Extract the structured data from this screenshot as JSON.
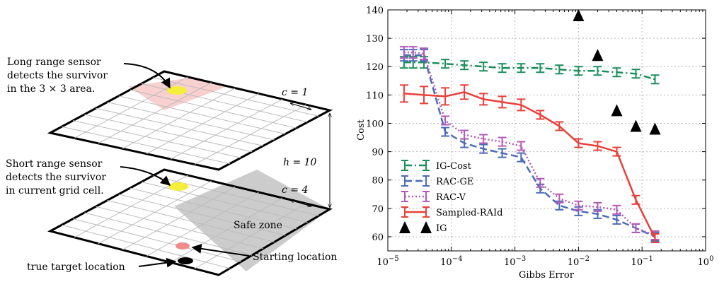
{
  "diagram": {
    "long_range_text": [
      "Long range sensor",
      "detects the survivor",
      "in the 3 × 3 area."
    ],
    "short_range_text": [
      "Short range sensor",
      "detects the survivor",
      "in current grid cell."
    ],
    "c_top": "c = 1",
    "c_bottom": "c = 4",
    "height_label": "h = 10",
    "safe_zone": "Safe zone",
    "starting_location": "Starting location",
    "true_target": "true target location",
    "colors": {
      "sensor_area": "#f9d0d0",
      "survivor": "#f5ee3a",
      "safe_zone": "#cccccc",
      "start": "#f08a8a"
    }
  },
  "chart_data": {
    "type": "line",
    "xlabel": "Gibbs Error",
    "ylabel": "Cost",
    "xscale": "log",
    "xlim": [
      1e-05,
      1
    ],
    "ylim": [
      55,
      140
    ],
    "xticks": [
      "10^−5",
      "10^−4",
      "10^−3",
      "10^−2",
      "10^−1",
      "10^0"
    ],
    "yticks": [
      60,
      70,
      80,
      90,
      100,
      110,
      120,
      130,
      140
    ],
    "legend_position": "lower-left",
    "series": [
      {
        "name": "IG-Cost",
        "color": "#1a8f5c",
        "style": "dashdot",
        "x": [
          1.8e-05,
          2.5e-05,
          3.7e-05,
          8e-05,
          0.00016,
          0.00032,
          0.00063,
          0.00125,
          0.0025,
          0.005,
          0.01,
          0.02,
          0.04,
          0.08,
          0.16
        ],
        "y": [
          121.5,
          121.5,
          121.5,
          121,
          120.5,
          120,
          119.5,
          119.5,
          119.5,
          119,
          118.5,
          118.5,
          118,
          117.5,
          115.5
        ],
        "err": [
          2,
          2,
          2,
          1.5,
          1.5,
          1.5,
          1.5,
          1.5,
          1.5,
          1.5,
          1.5,
          1.5,
          1.5,
          1.5,
          1.5
        ]
      },
      {
        "name": "RAC-GE",
        "color": "#4b6cb7",
        "style": "dashed",
        "x": [
          1.8e-05,
          2.5e-05,
          3.7e-05,
          8e-05,
          0.00016,
          0.00032,
          0.00063,
          0.00125,
          0.0025,
          0.005,
          0.01,
          0.02,
          0.04,
          0.08,
          0.16
        ],
        "y": [
          124,
          124,
          124,
          97,
          93,
          91,
          89.5,
          88,
          77,
          71,
          69,
          68,
          66,
          63,
          60
        ],
        "err": [
          2,
          2,
          2,
          1.5,
          1.5,
          1.5,
          1.5,
          1.5,
          1.5,
          1.5,
          1.5,
          1.5,
          1.5,
          1.5,
          1.5
        ]
      },
      {
        "name": "RAC-V",
        "color": "#b25ab8",
        "style": "dotted",
        "x": [
          1.8e-05,
          2.5e-05,
          3.7e-05,
          8e-05,
          0.00016,
          0.00032,
          0.00063,
          0.00125,
          0.0025,
          0.005,
          0.01,
          0.02,
          0.04,
          0.08,
          0.16
        ],
        "y": [
          125,
          125,
          124.5,
          101,
          96,
          94.5,
          93.5,
          92,
          79,
          73.5,
          71,
          70.5,
          69.5,
          63,
          60.5
        ],
        "err": [
          2,
          2,
          2,
          1.5,
          1.5,
          1.5,
          1.5,
          1.5,
          1.5,
          1.5,
          1.5,
          1.5,
          1.5,
          1.5,
          1.5
        ]
      },
      {
        "name": "Sampled-RAId",
        "color": "#e8403a",
        "style": "solid",
        "x": [
          1.8e-05,
          3.7e-05,
          8e-05,
          0.00016,
          0.00032,
          0.00063,
          0.00125,
          0.0025,
          0.005,
          0.01,
          0.02,
          0.04,
          0.08,
          0.16
        ],
        "y": [
          110.5,
          110,
          109.5,
          111,
          108.5,
          107.5,
          106.5,
          103,
          99,
          93,
          92,
          90,
          73,
          59.5
        ],
        "err": [
          3,
          3,
          3,
          2.5,
          2,
          2,
          2,
          1.5,
          1.5,
          1.5,
          1.5,
          1.5,
          1.5,
          1.5
        ]
      },
      {
        "name": "IG",
        "color": "#000000",
        "style": "markers",
        "x": [
          0.01,
          0.02,
          0.04,
          0.08,
          0.16
        ],
        "y": [
          138,
          124,
          104.5,
          99,
          98
        ]
      }
    ]
  }
}
